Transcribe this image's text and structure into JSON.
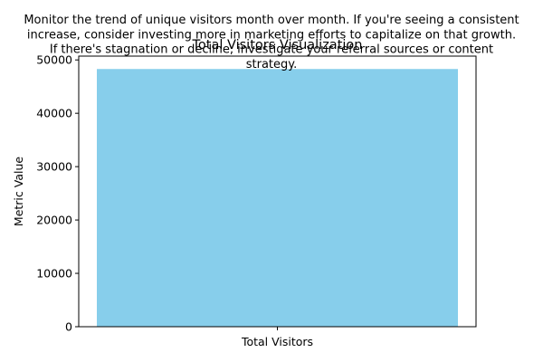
{
  "chart_data": {
    "type": "bar",
    "title": "Total Visitors Visualization",
    "note_lines": [
      "Monitor the trend of unique visitors month over month. If you're seeing a consistent",
      "increase, consider investing more in marketing efforts to capitalize on that growth.",
      "If there's stagnation or decline, investigate your referral sources or content",
      "strategy."
    ],
    "categories": [
      "Total Visitors"
    ],
    "values": [
      48300
    ],
    "xlabel": "",
    "ylabel": "Metric Value",
    "ylim": [
      0,
      50715
    ],
    "yticks": [
      0,
      10000,
      20000,
      30000,
      40000,
      50000
    ],
    "bar_color": "#87CEEB",
    "grid": false,
    "legend": "none"
  }
}
